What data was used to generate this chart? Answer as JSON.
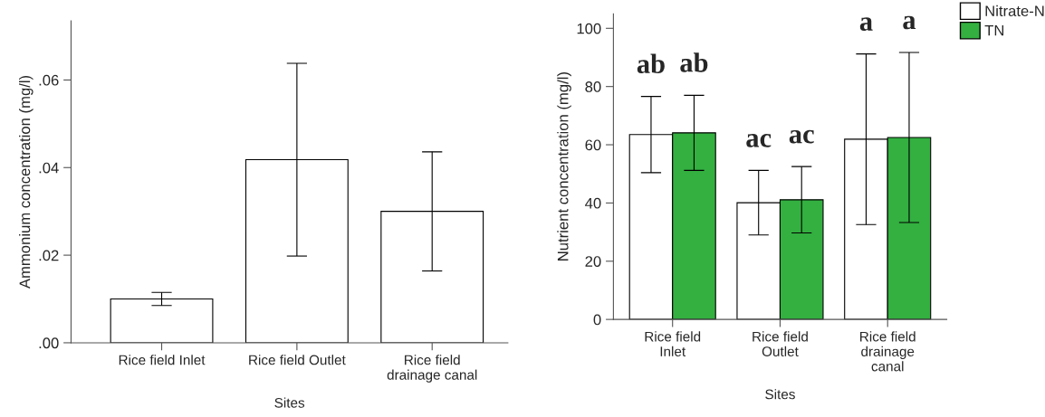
{
  "chart_data": [
    {
      "type": "bar",
      "xlabel": "Sites",
      "ylabel": "Ammonium concentration (mg/l)",
      "categories": [
        "Rice field Inlet",
        "Rice field Outlet",
        "Rice field\ndrainage canal"
      ],
      "series": [
        {
          "color": "#ffffff",
          "values": [
            0.01,
            0.0418,
            0.03
          ],
          "errors": [
            0.0015,
            0.022,
            0.0136
          ]
        }
      ],
      "ylim": [
        0,
        0.0735
      ],
      "yticks": [
        {
          "value": 0,
          "label": ".00"
        },
        {
          "value": 0.02,
          "label": ".02"
        },
        {
          "value": 0.04,
          "label": ".04"
        },
        {
          "value": 0.06,
          "label": ".06"
        }
      ],
      "grid": false,
      "legend": false
    },
    {
      "type": "bar",
      "xlabel": "Sites",
      "ylabel": "Nutrient concentration (mg/l)",
      "categories": [
        "Rice field\nInlet",
        "Rice field\nOutlet",
        "Rice field\ndrainage\ncanal"
      ],
      "series": [
        {
          "name": "Nitrate-N",
          "color": "#ffffff",
          "values": [
            63.5,
            40.1,
            61.9
          ],
          "errors": [
            13.1,
            11.1,
            29.3
          ]
        },
        {
          "name": "TN",
          "color": "#33b040",
          "values": [
            64.1,
            41.1,
            62.5
          ],
          "errors": [
            12.9,
            11.4,
            29.2
          ]
        }
      ],
      "ylim": [
        0,
        105
      ],
      "yticks": [
        0,
        20,
        40,
        60,
        80,
        100
      ],
      "grid": false,
      "legend": "top right",
      "annotations": [
        "ab",
        "ab",
        "ac",
        "ac",
        "a",
        "a"
      ]
    }
  ]
}
